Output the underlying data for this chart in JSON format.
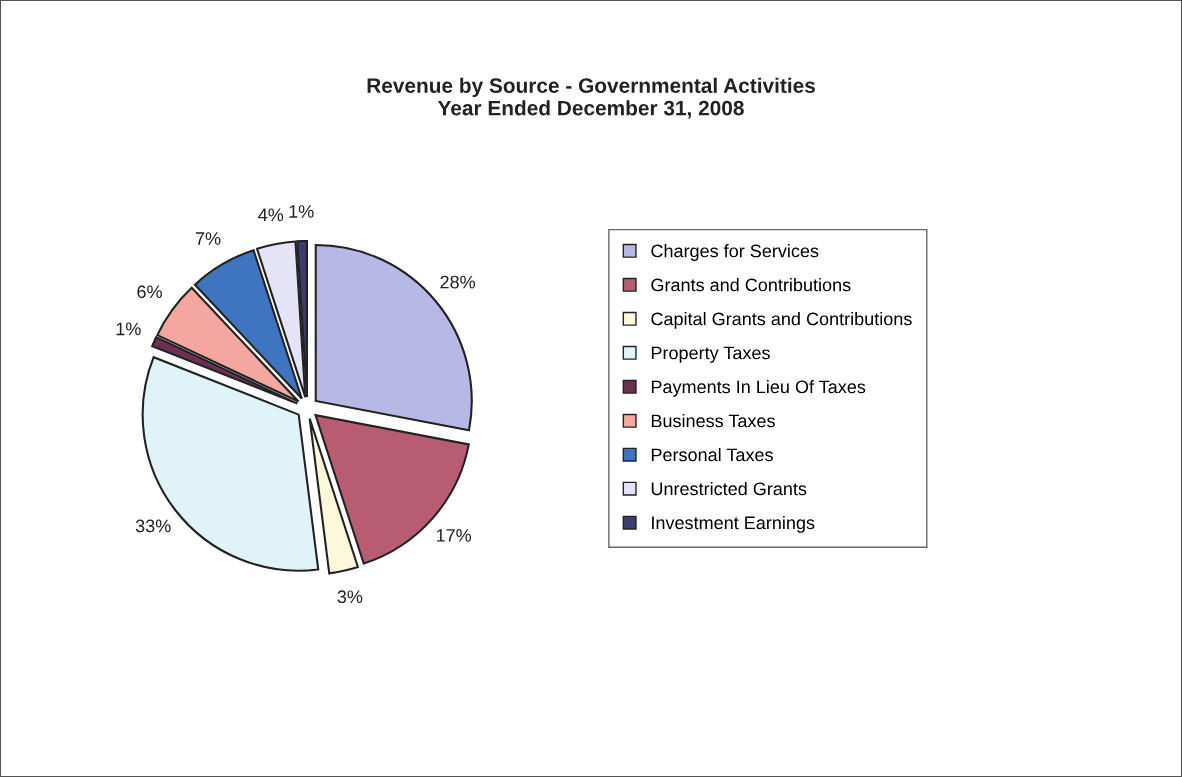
{
  "chart_data": {
    "type": "pie",
    "title": "Revenue by Source - Governmental Activities\nYear Ended December 31, 2008",
    "categories": [
      "Charges for Services",
      "Grants and Contributions",
      "Capital Grants and Contributions",
      "Property Taxes",
      "Payments In Lieu Of Taxes",
      "Business Taxes",
      "Personal Taxes",
      "Unrestricted Grants",
      "Investment Earnings"
    ],
    "values": [
      28,
      17,
      3,
      33,
      1,
      6,
      7,
      4,
      1
    ],
    "colors": [
      "#b8b8e6",
      "#b85c72",
      "#fbf8dc",
      "#dff3f8",
      "#6e3052",
      "#f4a6a0",
      "#3f74c0",
      "#e4e4f6",
      "#3c3c70"
    ],
    "value_labels": [
      "28%",
      "17%",
      "3%",
      "33%",
      "1%",
      "6%",
      "7%",
      "4%",
      "1%"
    ],
    "legend": "right"
  }
}
